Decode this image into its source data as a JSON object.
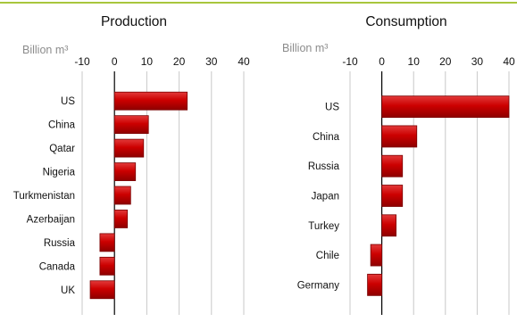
{
  "chart_data": [
    {
      "type": "bar",
      "orientation": "horizontal",
      "title": "Production",
      "unit_label": "Billion m³",
      "xlim": [
        -10,
        40
      ],
      "xticks": [
        -10,
        0,
        10,
        20,
        30,
        40
      ],
      "grid": "vertical",
      "categories": [
        "US",
        "China",
        "Qatar",
        "Nigeria",
        "Turkmenistan",
        "Azerbaijan",
        "Russia",
        "Canada",
        "UK"
      ],
      "values": [
        22.5,
        10.5,
        9,
        6.5,
        5,
        4,
        -4.5,
        -4.5,
        -7.5
      ],
      "bar_color": "#cc0000"
    },
    {
      "type": "bar",
      "orientation": "horizontal",
      "title": "Consumption",
      "unit_label": "Billion m³",
      "xlim": [
        -10,
        40
      ],
      "xticks": [
        -10,
        0,
        10,
        20,
        30,
        40
      ],
      "grid": "vertical",
      "categories": [
        "US",
        "China",
        "Russia",
        "Japan",
        "Turkey",
        "Chile",
        "Germany"
      ],
      "values": [
        40,
        11,
        6.5,
        6.5,
        4.5,
        -3.5,
        -4.5
      ],
      "bar_color": "#cc0000"
    }
  ]
}
